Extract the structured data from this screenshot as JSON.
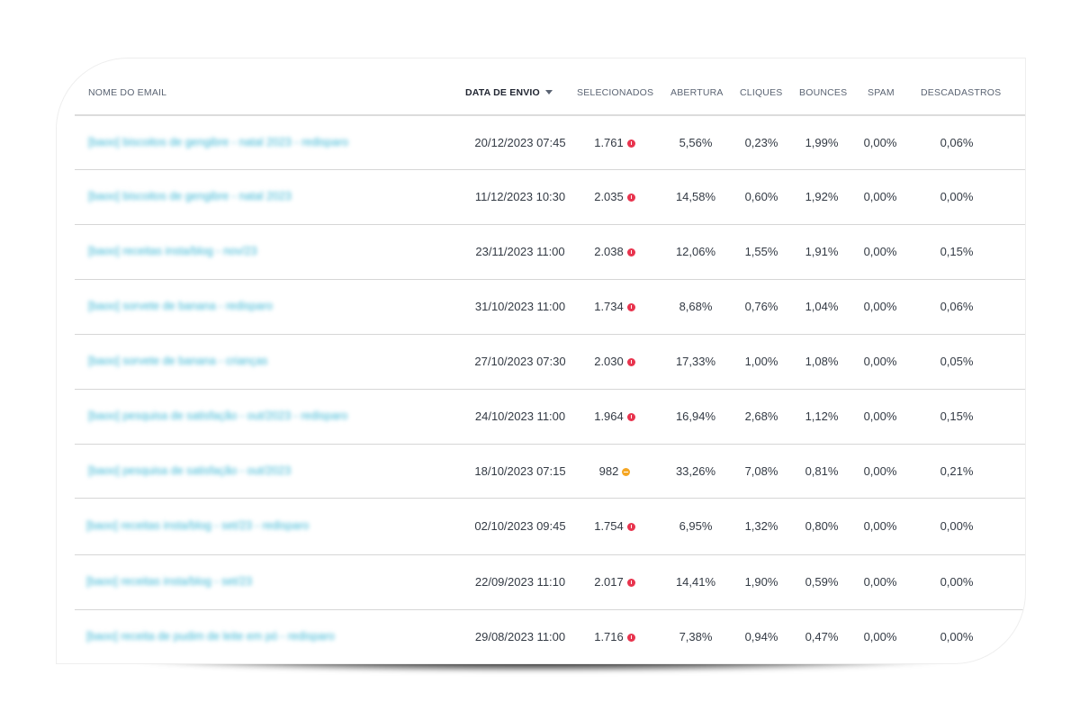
{
  "columns": {
    "name": "NOME DO EMAIL",
    "date": "DATA DE ENVIO",
    "selected": "SELECIONADOS",
    "open": "ABERTURA",
    "clicks": "CLIQUES",
    "bounces": "BOUNCES",
    "spam": "SPAM",
    "unsub": "DESCADASTROS"
  },
  "sort": {
    "column": "date",
    "direction": "desc",
    "icon": "caret-down-icon"
  },
  "colors": {
    "link": "#39b6d4",
    "status_alert": "#e8344e",
    "status_warning": "#f5a623"
  },
  "rows": [
    {
      "name": "[baoo] biscoitos de gengibre - natal 2023 - redisparo",
      "date": "20/12/2023 07:45",
      "selected": "1.761",
      "status": "alert",
      "open": "5,56%",
      "clicks": "0,23%",
      "bounces": "1,99%",
      "spam": "0,00%",
      "unsub": "0,06%"
    },
    {
      "name": "[baoo] biscoitos de gengibre - natal 2023",
      "date": "11/12/2023 10:30",
      "selected": "2.035",
      "status": "alert",
      "open": "14,58%",
      "clicks": "0,60%",
      "bounces": "1,92%",
      "spam": "0,00%",
      "unsub": "0,00%"
    },
    {
      "name": "[baoo] receitas insta/blog - nov/23",
      "date": "23/11/2023 11:00",
      "selected": "2.038",
      "status": "alert",
      "open": "12,06%",
      "clicks": "1,55%",
      "bounces": "1,91%",
      "spam": "0,00%",
      "unsub": "0,15%"
    },
    {
      "name": "[baoo] sorvete de banana - redisparo",
      "date": "31/10/2023 11:00",
      "selected": "1.734",
      "status": "alert",
      "open": "8,68%",
      "clicks": "0,76%",
      "bounces": "1,04%",
      "spam": "0,00%",
      "unsub": "0,06%"
    },
    {
      "name": "[baoo] sorvete de banana - crianças",
      "date": "27/10/2023 07:30",
      "selected": "2.030",
      "status": "alert",
      "open": "17,33%",
      "clicks": "1,00%",
      "bounces": "1,08%",
      "spam": "0,00%",
      "unsub": "0,05%"
    },
    {
      "name": "[baoo] pesquisa de satisfação - out/2023 - redisparo",
      "date": "24/10/2023 11:00",
      "selected": "1.964",
      "status": "alert",
      "open": "16,94%",
      "clicks": "2,68%",
      "bounces": "1,12%",
      "spam": "0,00%",
      "unsub": "0,15%"
    },
    {
      "name": "[baoo] pesquisa de satisfação - out/2023",
      "date": "18/10/2023 07:15",
      "selected": "982",
      "status": "warning",
      "open": "33,26%",
      "clicks": "7,08%",
      "bounces": "0,81%",
      "spam": "0,00%",
      "unsub": "0,21%"
    },
    {
      "name": "[baoo] receitas insta/blog - set/23 - redisparo",
      "date": "02/10/2023 09:45",
      "selected": "1.754",
      "status": "alert",
      "open": "6,95%",
      "clicks": "1,32%",
      "bounces": "0,80%",
      "spam": "0,00%",
      "unsub": "0,00%"
    },
    {
      "name": "[baoo] receitas insta/blog - set/23",
      "date": "22/09/2023 11:10",
      "selected": "2.017",
      "status": "alert",
      "open": "14,41%",
      "clicks": "1,90%",
      "bounces": "0,59%",
      "spam": "0,00%",
      "unsub": "0,00%"
    },
    {
      "name": "[baoo] receita de pudim de leite em pó - redisparo",
      "date": "29/08/2023 11:00",
      "selected": "1.716",
      "status": "alert",
      "open": "7,38%",
      "clicks": "0,94%",
      "bounces": "0,47%",
      "spam": "0,00%",
      "unsub": "0,00%"
    }
  ]
}
